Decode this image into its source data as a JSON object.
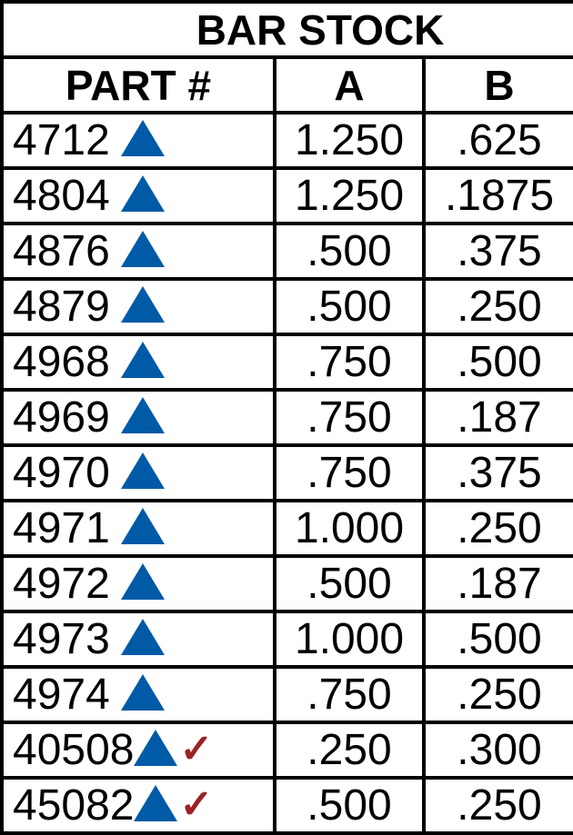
{
  "title": "BAR STOCK",
  "columns": [
    "PART #",
    "A",
    "B"
  ],
  "colors": {
    "triangle": "#005aa6",
    "check": "#9b2226"
  },
  "icons": {
    "triangle": "triangle-marker",
    "check": "check-mark"
  },
  "rows": [
    {
      "part": "4712",
      "a": "1.250",
      "b": ".625",
      "check": false
    },
    {
      "part": "4804",
      "a": "1.250",
      "b": ".1875",
      "check": false
    },
    {
      "part": "4876",
      "a": ".500",
      "b": ".375",
      "check": false
    },
    {
      "part": "4879",
      "a": ".500",
      "b": ".250",
      "check": false
    },
    {
      "part": "4968",
      "a": ".750",
      "b": ".500",
      "check": false
    },
    {
      "part": "4969",
      "a": ".750",
      "b": ".187",
      "check": false
    },
    {
      "part": "4970",
      "a": ".750",
      "b": ".375",
      "check": false
    },
    {
      "part": "4971",
      "a": "1.000",
      "b": ".250",
      "check": false
    },
    {
      "part": "4972",
      "a": ".500",
      "b": ".187",
      "check": false
    },
    {
      "part": "4973",
      "a": "1.000",
      "b": ".500",
      "check": false
    },
    {
      "part": "4974",
      "a": ".750",
      "b": ".250",
      "check": false
    },
    {
      "part": "40508",
      "a": ".250",
      "b": ".300",
      "check": true
    },
    {
      "part": "45082",
      "a": ".500",
      "b": ".250",
      "check": true
    }
  ]
}
